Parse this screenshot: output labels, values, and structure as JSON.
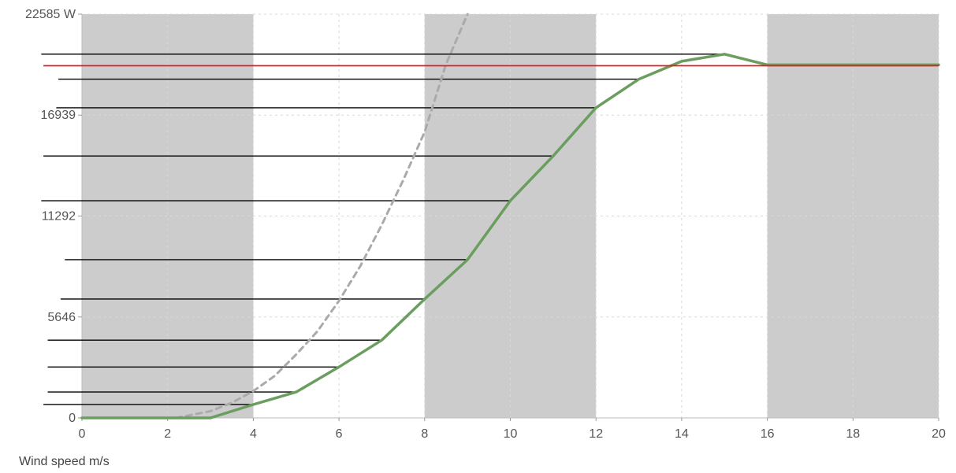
{
  "chart_data": {
    "type": "line",
    "xlabel": "Wind speed m/s",
    "y_unit": "W",
    "xlim": [
      0,
      20
    ],
    "ylim": [
      0,
      22585
    ],
    "x_ticks": [
      0,
      2,
      4,
      6,
      8,
      10,
      12,
      14,
      16,
      18,
      20
    ],
    "x_tick_labels": [
      "0",
      "2",
      "4",
      "6",
      "8",
      "10",
      "12",
      "14",
      "16",
      "18",
      "20"
    ],
    "y_ticks": [
      0,
      5646,
      11292,
      16939,
      22585
    ],
    "y_tick_labels": [
      "0",
      "5646",
      "11292",
      "16939",
      "22585 W"
    ],
    "grid": true,
    "shaded_bands": [
      [
        0,
        4
      ],
      [
        8,
        12
      ],
      [
        16,
        20
      ]
    ],
    "reference_line": {
      "y": 19700,
      "color": "#e02020"
    },
    "series": [
      {
        "style": "solid",
        "color": "#6a9e5e",
        "x": [
          0,
          1,
          2,
          3,
          4,
          5,
          6,
          7,
          8,
          9,
          10,
          11,
          12,
          13,
          14,
          15,
          16,
          17,
          18,
          19,
          20
        ],
        "y": [
          0,
          0,
          0,
          0,
          750,
          1450,
          2850,
          4350,
          6650,
          8850,
          12150,
          14650,
          17350,
          18950,
          19950,
          20350,
          19750,
          19750,
          19750,
          19750,
          19750
        ]
      },
      {
        "style": "dashed",
        "color": "#aaaaaa",
        "x": [
          2.2,
          3,
          3.5,
          4,
          4.5,
          5,
          5.5,
          6,
          6.5,
          7,
          7.5,
          8,
          8.5,
          9
        ],
        "y": [
          0,
          380,
          850,
          1500,
          2350,
          3550,
          4850,
          6550,
          8500,
          10800,
          13300,
          16000,
          19800,
          22585
        ]
      }
    ],
    "stair_lines": [
      {
        "x_start": -0.9,
        "x_end": 4.0,
        "y": 750
      },
      {
        "x_start": -0.8,
        "x_end": 5.0,
        "y": 1450
      },
      {
        "x_start": -0.8,
        "x_end": 6.0,
        "y": 2850
      },
      {
        "x_start": -0.8,
        "x_end": 7.0,
        "y": 4350
      },
      {
        "x_start": -0.5,
        "x_end": 8.0,
        "y": 6650
      },
      {
        "x_start": -0.4,
        "x_end": 9.0,
        "y": 8850
      },
      {
        "x_start": -0.95,
        "x_end": 10.0,
        "y": 12150
      },
      {
        "x_start": -0.9,
        "x_end": 11.0,
        "y": 14650
      },
      {
        "x_start": -0.6,
        "x_end": 12.0,
        "y": 17350
      },
      {
        "x_start": -0.55,
        "x_end": 13.0,
        "y": 18950
      },
      {
        "x_start": -0.95,
        "x_end": 15.0,
        "y": 20350
      }
    ]
  }
}
